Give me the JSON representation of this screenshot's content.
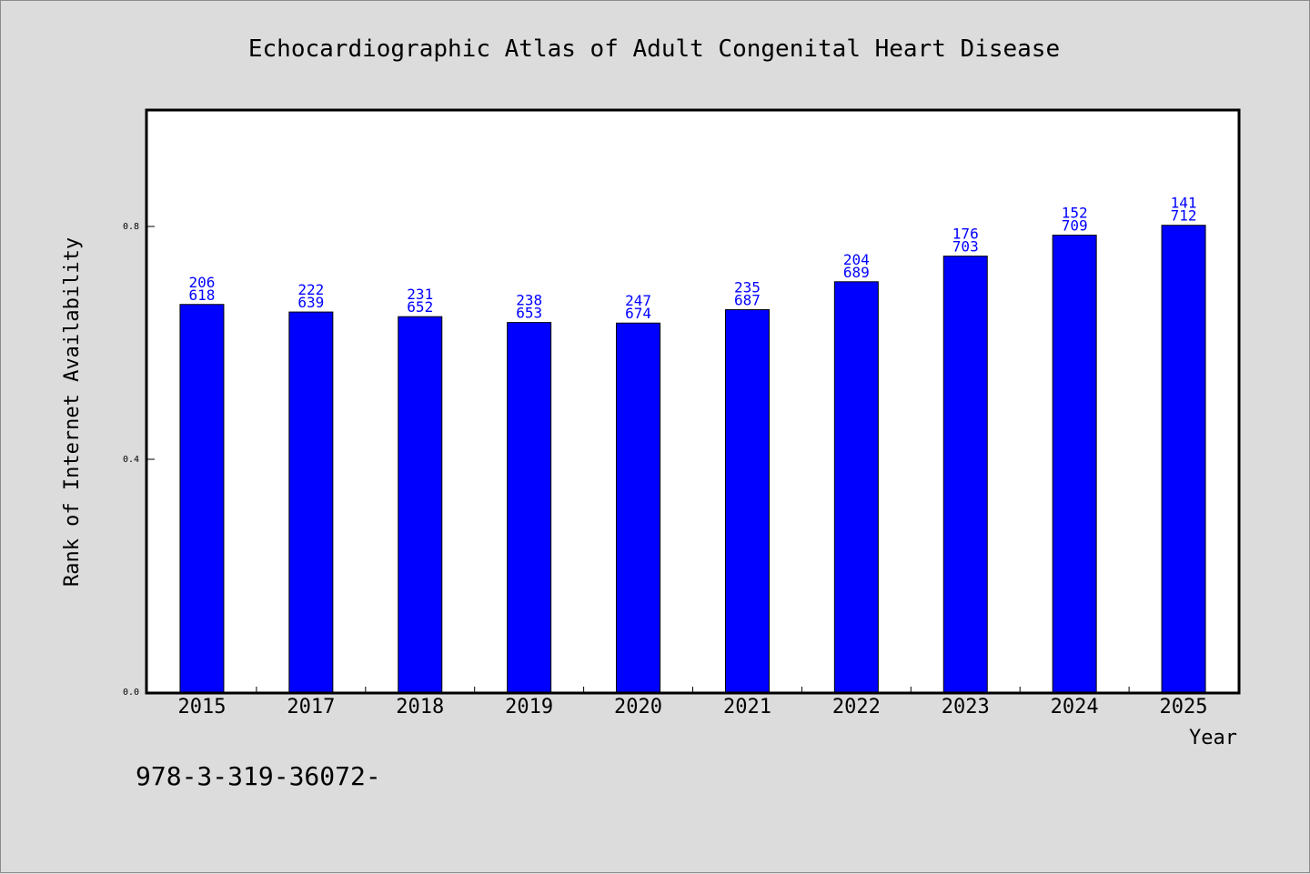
{
  "chart_data": {
    "type": "bar",
    "title": "Echocardiographic Atlas of Adult Congenital Heart Disease",
    "xlabel": "Year",
    "ylabel": "Rank of Internet Availability",
    "ylim": [
      0,
      1.0
    ],
    "yticks": [
      "0.0",
      "0.4",
      "0.8"
    ],
    "ytick_values": [
      0.0,
      0.4,
      0.8
    ],
    "grid": false,
    "bar_color": "#0000ff",
    "label_color": "#0000ff",
    "categories": [
      "2015",
      "2017",
      "2018",
      "2019",
      "2020",
      "2021",
      "2022",
      "2023",
      "2024",
      "2025"
    ],
    "values": [
      0.666,
      0.653,
      0.645,
      0.635,
      0.634,
      0.657,
      0.705,
      0.749,
      0.785,
      0.802
    ],
    "data_labels": [
      [
        "206",
        "618"
      ],
      [
        "222",
        "639"
      ],
      [
        "231",
        "652"
      ],
      [
        "238",
        "653"
      ],
      [
        "247",
        "674"
      ],
      [
        "235",
        "687"
      ],
      [
        "204",
        "689"
      ],
      [
        "176",
        "703"
      ],
      [
        "152",
        "709"
      ],
      [
        "141",
        "712"
      ]
    ]
  },
  "footer": {
    "text": "978-3-319-36072-"
  }
}
